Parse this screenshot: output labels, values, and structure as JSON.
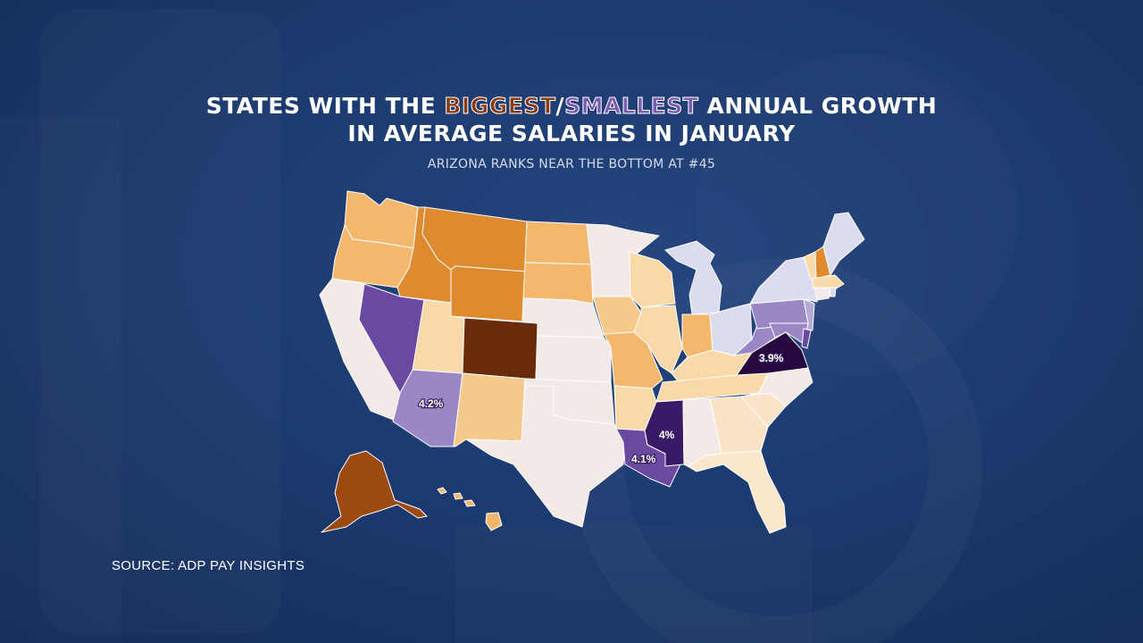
{
  "title": {
    "part1": "STATES WITH THE ",
    "biggest": "BIGGEST",
    "slash": "/",
    "smallest": "SMALLEST",
    "part2": " ANNUAL GROWTH",
    "line2": "IN AVERAGE SALARIES IN JANUARY"
  },
  "subtitle": "ARIZONA RANKS NEAR THE BOTTOM AT #45",
  "source": "SOURCE: ADP PAY INSIGHTS",
  "colors": {
    "background": "#1c3b70",
    "neutral": "#f2eae6",
    "light_orange": "#f9d9a8",
    "mid_orange": "#f5b76c",
    "orange": "#e08a30",
    "dark_orange": "#9d4a12",
    "darkest_brown": "#6a2a0c",
    "light_purple": "#dcdcf0",
    "mid_purple": "#9a88c6",
    "purple": "#6b49a0",
    "dark_purple": "#3a1a66",
    "darkest_purple": "#26083f"
  },
  "labels": {
    "VA": "3.9%",
    "AZ": "4.2%",
    "LA": "4.1%",
    "MS": "4%"
  }
}
